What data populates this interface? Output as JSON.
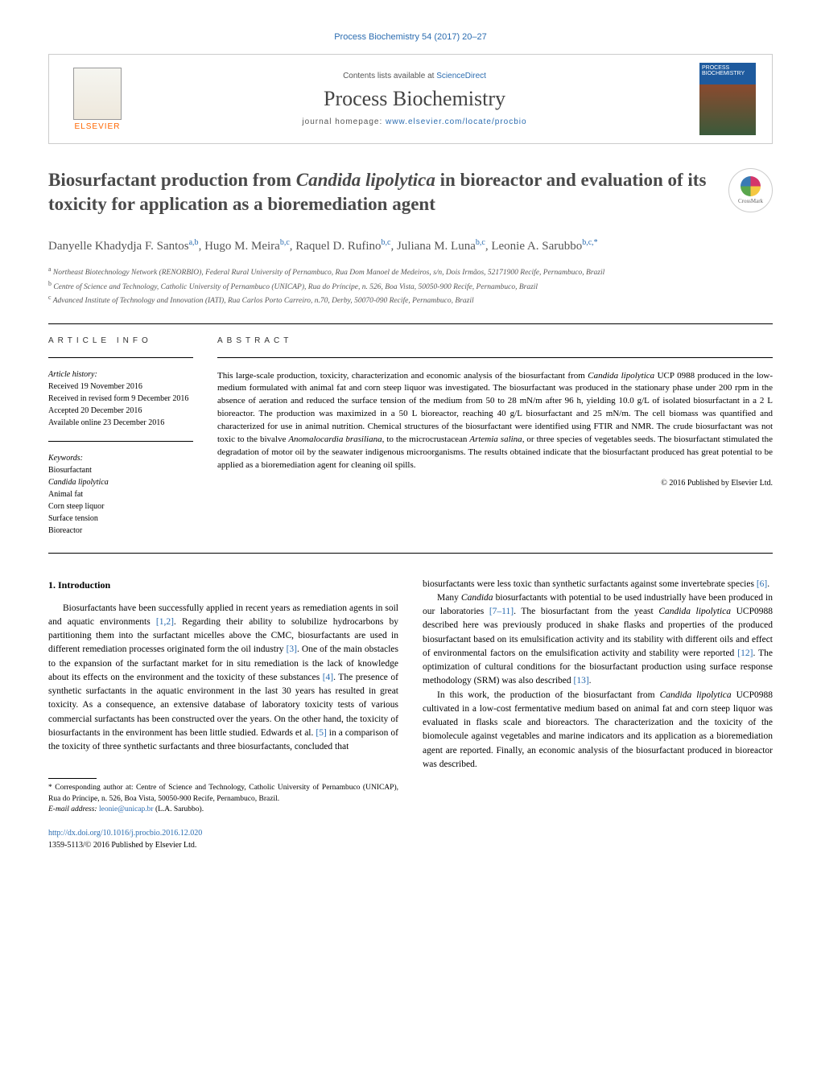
{
  "journal_ref": "Process Biochemistry 54 (2017) 20–27",
  "header": {
    "contents_text": "Contents lists available at ",
    "contents_link": "ScienceDirect",
    "journal_title": "Process Biochemistry",
    "homepage_text": "journal homepage: ",
    "homepage_link": "www.elsevier.com/locate/procbio",
    "elsevier": "ELSEVIER",
    "cover_text": "PROCESS BIOCHEMISTRY"
  },
  "article": {
    "title_pre": "Biosurfactant production from ",
    "title_em": "Candida lipolytica",
    "title_post": " in bioreactor and evaluation of its toxicity for application as a bioremediation agent",
    "crossmark": "CrossMark"
  },
  "authors": "Danyelle Khadydja F. Santos",
  "author_sup1": "a,b",
  "author2": ", Hugo M. Meira",
  "author_sup2": "b,c",
  "author3": ", Raquel D. Rufino",
  "author_sup3": "b,c",
  "author4": ", Juliana M. Luna",
  "author_sup4": "b,c",
  "author5": ", Leonie A. Sarubbo",
  "author_sup5": "b,c,*",
  "affiliations": {
    "a": "Northeast Biotechnology Network (RENORBIO), Federal Rural University of Pernambuco, Rua Dom Manoel de Medeiros, s/n, Dois Irmãos, 52171900 Recife, Pernambuco, Brazil",
    "b": "Centre of Science and Technology, Catholic University of Pernambuco (UNICAP), Rua do Príncipe, n. 526, Boa Vista, 50050-900 Recife, Pernambuco, Brazil",
    "c": "Advanced Institute of Technology and Innovation (IATI), Rua Carlos Porto Carreiro, n.70, Derby, 50070-090 Recife, Pernambuco, Brazil"
  },
  "info": {
    "label": "ARTICLE INFO",
    "history_label": "Article history:",
    "received": "Received 19 November 2016",
    "revised": "Received in revised form 9 December 2016",
    "accepted": "Accepted 20 December 2016",
    "online": "Available online 23 December 2016",
    "keywords_label": "Keywords:",
    "keywords": [
      "Biosurfactant",
      "Candida lipolytica",
      "Animal fat",
      "Corn steep liquor",
      "Surface tension",
      "Bioreactor"
    ]
  },
  "abstract": {
    "label": "ABSTRACT",
    "text_p1": "This large-scale production, toxicity, characterization and economic analysis of the biosurfactant from ",
    "em1": "Candida lipolytica",
    "text_p2": " UCP 0988 produced in the low-medium formulated with animal fat and corn steep liquor was investigated. The biosurfactant was produced in the stationary phase under 200 rpm in the absence of aeration and reduced the surface tension of the medium from 50 to 28 mN/m after 96 h, yielding 10.0 g/L of isolated biosurfactant in a 2 L bioreactor. The production was maximized in a 50 L bioreactor, reaching 40 g/L biosurfactant and 25 mN/m. The cell biomass was quantified and characterized for use in animal nutrition. Chemical structures of the biosurfactant were identified using FTIR and NMR. The crude biosurfactant was not toxic to the bivalve ",
    "em2": "Anomalocardia brasiliana",
    "text_p3": ", to the microcrustacean ",
    "em3": "Artemia salina",
    "text_p4": ", or three species of vegetables seeds. The biosurfactant stimulated the degradation of motor oil by the seawater indigenous microorganisms. The results obtained indicate that the biosurfactant produced has great potential to be applied as a bioremediation agent for cleaning oil spills.",
    "copyright": "© 2016 Published by Elsevier Ltd."
  },
  "body": {
    "heading1": "1. Introduction",
    "col1_p1a": "Biosurfactants have been successfully applied in recent years as remediation agents in soil and aquatic environments ",
    "ref1": "[1,2]",
    "col1_p1b": ". Regarding their ability to solubilize hydrocarbons by partitioning them into the surfactant micelles above the CMC, biosurfactants are used in different remediation processes originated form the oil industry ",
    "ref2": "[3]",
    "col1_p1c": ". One of the main obstacles to the expansion of the surfactant market for in situ remediation is the lack of knowledge about its effects on the environment and the toxicity of these substances ",
    "ref3": "[4]",
    "col1_p1d": ". The presence of synthetic surfactants in the aquatic environment in the last 30 years has resulted in great toxicity. As a consequence, an extensive database of laboratory toxicity tests of various commercial surfactants has been constructed over the years. On the other hand, the toxicity of biosurfactants in the environment has been little studied. Edwards et al. ",
    "ref4": "[5]",
    "col1_p1e": " in a comparison of the toxicity of three synthetic surfactants and three biosurfactants, concluded that",
    "col2_p1a": "biosurfactants were less toxic than synthetic surfactants against some invertebrate species ",
    "ref5": "[6]",
    "col2_p1b": ".",
    "col2_p2a": "Many ",
    "col2_em1": "Candida",
    "col2_p2b": " biosurfactants with potential to be used industrially have been produced in our laboratories ",
    "ref6": "[7–11]",
    "col2_p2c": ". The biosurfactant from the yeast ",
    "col2_em2": "Candida lipolytica",
    "col2_p2d": " UCP0988 described here was previously produced in shake flasks and properties of the produced biosurfactant based on its emulsification activity and its stability with different oils and effect of environmental factors on the emulsification activity and stability were reported ",
    "ref7": "[12]",
    "col2_p2e": ". The optimization of cultural conditions for the biosurfactant production using surface response methodology (SRM) was also described ",
    "ref8": "[13]",
    "col2_p2f": ".",
    "col2_p3a": "In this work, the production of the biosurfactant from ",
    "col2_em3": "Candida lipolytica",
    "col2_p3b": " UCP0988 cultivated in a low-cost fermentative medium based on animal fat and corn steep liquor was evaluated in flasks scale and bioreactors. The characterization and the toxicity of the biomolecule against vegetables and marine indicators and its application as a bioremediation agent are reported. Finally, an economic analysis of the biosurfactant produced in bioreactor was described."
  },
  "footnote": {
    "corr": "* Corresponding author at: Centre of Science and Technology, Catholic University of Pernambuco (UNICAP), Rua do Príncipe, n. 526, Boa Vista, 50050-900 Recife, Pernambuco, Brazil.",
    "email_label": "E-mail address: ",
    "email": "leonie@unicap.br",
    "email_suffix": " (L.A. Sarubbo)."
  },
  "doi": {
    "link": "http://dx.doi.org/10.1016/j.procbio.2016.12.020",
    "issn": "1359-5113/© 2016 Published by Elsevier Ltd."
  }
}
